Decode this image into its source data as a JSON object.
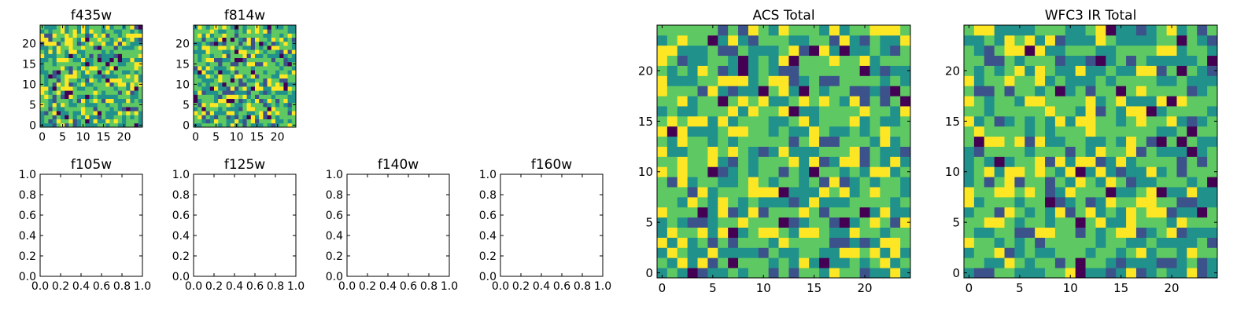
{
  "figure": {
    "colormap": [
      "#440154",
      "#3b528b",
      "#21918c",
      "#5ec962",
      "#fde725"
    ],
    "axes_color": "#000000",
    "background": "#ffffff"
  },
  "chart_data": [
    {
      "type": "heatmap",
      "title": "f435w",
      "grid_size": 25,
      "seed": 11,
      "xlim": [
        -0.5,
        24.5
      ],
      "ylim": [
        -0.5,
        24.5
      ],
      "xticks": [
        0,
        5,
        10,
        15,
        20
      ],
      "yticks": [
        0,
        5,
        10,
        15,
        20
      ]
    },
    {
      "type": "heatmap",
      "title": "f814w",
      "grid_size": 25,
      "seed": 23,
      "xlim": [
        -0.5,
        24.5
      ],
      "ylim": [
        -0.5,
        24.5
      ],
      "xticks": [
        0,
        5,
        10,
        15,
        20
      ],
      "yticks": [
        0,
        5,
        10,
        15,
        20
      ]
    },
    {
      "type": "empty",
      "title": "f105w",
      "xlim": [
        0,
        1
      ],
      "ylim": [
        0,
        1
      ],
      "xticks": [
        "0.0",
        "0.2",
        "0.4",
        "0.6",
        "0.8",
        "1.0"
      ],
      "yticks": [
        "0.0",
        "0.2",
        "0.4",
        "0.6",
        "0.8",
        "1.0"
      ]
    },
    {
      "type": "empty",
      "title": "f125w",
      "xlim": [
        0,
        1
      ],
      "ylim": [
        0,
        1
      ],
      "xticks": [
        "0.0",
        "0.2",
        "0.4",
        "0.6",
        "0.8",
        "1.0"
      ],
      "yticks": [
        "0.0",
        "0.2",
        "0.4",
        "0.6",
        "0.8",
        "1.0"
      ]
    },
    {
      "type": "empty",
      "title": "f140w",
      "xlim": [
        0,
        1
      ],
      "ylim": [
        0,
        1
      ],
      "xticks": [
        "0.0",
        "0.2",
        "0.4",
        "0.6",
        "0.8",
        "1.0"
      ],
      "yticks": [
        "0.0",
        "0.2",
        "0.4",
        "0.6",
        "0.8",
        "1.0"
      ]
    },
    {
      "type": "empty",
      "title": "f160w",
      "xlim": [
        0,
        1
      ],
      "ylim": [
        0,
        1
      ],
      "xticks": [
        "0.0",
        "0.2",
        "0.4",
        "0.6",
        "0.8",
        "1.0"
      ],
      "yticks": [
        "0.0",
        "0.2",
        "0.4",
        "0.6",
        "0.8",
        "1.0"
      ]
    },
    {
      "type": "heatmap",
      "title": "ACS Total",
      "grid_size": 25,
      "seed": 37,
      "xlim": [
        -0.5,
        24.5
      ],
      "ylim": [
        -0.5,
        24.5
      ],
      "xticks": [
        0,
        5,
        10,
        15,
        20
      ],
      "yticks": [
        0,
        5,
        10,
        15,
        20
      ]
    },
    {
      "type": "heatmap",
      "title": "WFC3 IR Total",
      "grid_size": 25,
      "seed": 53,
      "xlim": [
        -0.5,
        24.5
      ],
      "ylim": [
        -0.5,
        24.5
      ],
      "xticks": [
        0,
        5,
        10,
        15,
        20
      ],
      "yticks": [
        0,
        5,
        10,
        15,
        20
      ]
    }
  ]
}
